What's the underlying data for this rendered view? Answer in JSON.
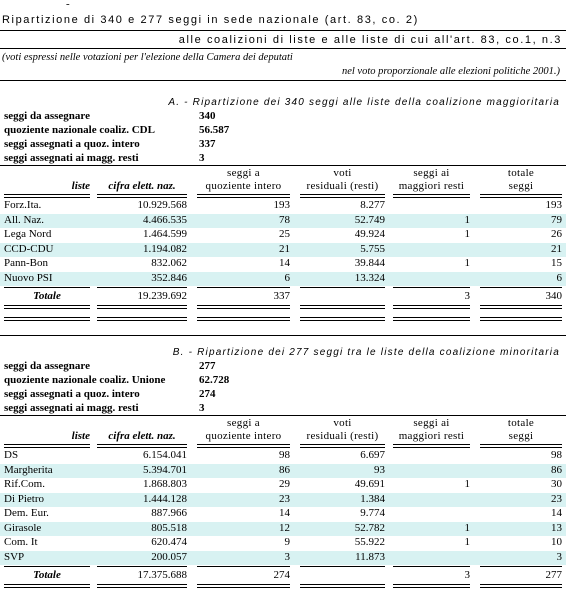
{
  "header": {
    "dash": "-",
    "title": "Ripartizione di 340 e 277 seggi in sede nazionale (art. 83, co. 2)",
    "subtitle": "alle coalizioni di liste e alle liste di cui all'art. 83, co.1, n.3",
    "note_1": "(voti espressi nelle votazioni per l'elezione della Camera dei deputati",
    "note_2": "nel voto proporzionale alle elezioni politiche 2001.)"
  },
  "sections": [
    {
      "title": "A. - Ripartizione dei 340 seggi alle liste della coalizione maggioritaria",
      "info": [
        {
          "label": "seggi da assegnare",
          "value": "340"
        },
        {
          "label": "quoziente nazionale coaliz. CDL",
          "value": "56.587"
        },
        {
          "label": "seggi assegnati a quoz. intero",
          "value": "337"
        },
        {
          "label": "seggi assegnati ai magg. resti",
          "value": "3"
        }
      ],
      "headers": [
        [
          "liste"
        ],
        [
          "cifra elett. naz."
        ],
        [
          "seggi a",
          "quoziente intero"
        ],
        [
          "voti",
          "residuali (resti)"
        ],
        [
          "seggi ai",
          "maggiori resti"
        ],
        [
          "totale",
          "seggi"
        ]
      ],
      "rows": [
        [
          "Forz.Ita.",
          "10.929.568",
          "193",
          "8.277",
          null,
          "193"
        ],
        [
          "All. Naz.",
          "4.466.535",
          "78",
          "52.749",
          "1",
          "79"
        ],
        [
          "Lega Nord",
          "1.464.599",
          "25",
          "49.924",
          "1",
          "26"
        ],
        [
          "CCD-CDU",
          "1.194.082",
          "21",
          "5.755",
          null,
          "21"
        ],
        [
          "Pann-Bon",
          "832.062",
          "14",
          "39.844",
          "1",
          "15"
        ],
        [
          "Nuovo PSI",
          "352.846",
          "6",
          "13.324",
          null,
          "6"
        ]
      ],
      "total": [
        "Totale",
        "19.239.692",
        "337",
        null,
        "3",
        "340"
      ]
    },
    {
      "title": "B. - Ripartizione dei 277 seggi tra le liste della coalizione minoritaria",
      "info": [
        {
          "label": "seggi da assegnare",
          "value": "277"
        },
        {
          "label": "quoziente nazionale coaliz. Unione",
          "value": "62.728"
        },
        {
          "label": "seggi assegnati a quoz. intero",
          "value": "274"
        },
        {
          "label": "seggi assegnati ai magg. resti",
          "value": "3"
        }
      ],
      "headers": [
        [
          "liste"
        ],
        [
          "cifra elett. naz."
        ],
        [
          "seggi a",
          "quoziente intero"
        ],
        [
          "voti",
          "residuali (resti)"
        ],
        [
          "seggi ai",
          "maggiori resti"
        ],
        [
          "totale",
          "seggi"
        ]
      ],
      "rows": [
        [
          "DS",
          "6.154.041",
          "98",
          "6.697",
          null,
          "98"
        ],
        [
          "Margherita",
          "5.394.701",
          "86",
          "93",
          null,
          "86"
        ],
        [
          "Rif.Com.",
          "1.868.803",
          "29",
          "49.691",
          "1",
          "30"
        ],
        [
          "Di Pietro",
          "1.444.128",
          "23",
          "1.384",
          null,
          "23"
        ],
        [
          "Dem. Eur.",
          "887.966",
          "14",
          "9.774",
          null,
          "14"
        ],
        [
          "Girasole",
          "805.518",
          "12",
          "52.782",
          "1",
          "13"
        ],
        [
          "Com. It",
          "620.474",
          "9",
          "55.922",
          "1",
          "10"
        ],
        [
          "SVP",
          "200.057",
          "3",
          "11.873",
          null,
          "3"
        ]
      ],
      "total": [
        "Totale",
        "17.375.688",
        "274",
        null,
        "3",
        "277"
      ]
    }
  ]
}
